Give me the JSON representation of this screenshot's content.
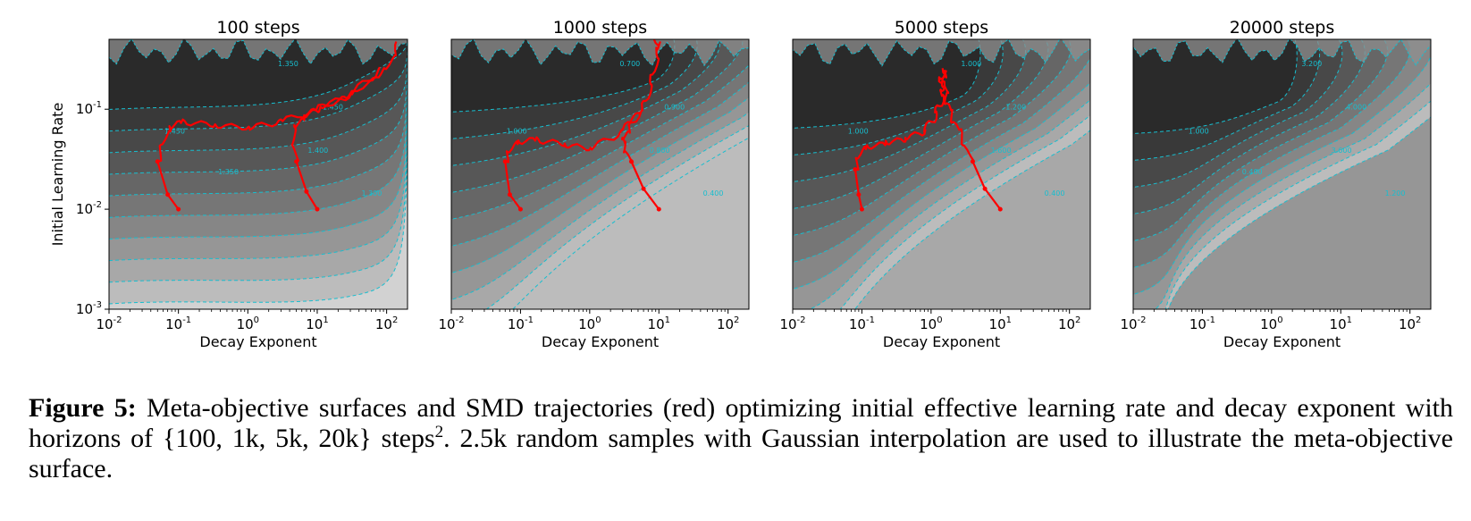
{
  "chart_data": [
    {
      "type": "contour",
      "title": "100 steps",
      "xlabel": "Decay Exponent",
      "ylabel": "Initial Learning Rate",
      "xscale": "log",
      "yscale": "log",
      "xlim": [
        0.01,
        200
      ],
      "ylim": [
        0.001,
        0.5
      ],
      "xticks": [
        "10",
        "10",
        "10",
        "10",
        "10"
      ],
      "xtick_exponents": [
        "-2",
        "-1",
        "0",
        "1",
        "2"
      ],
      "yticks": [
        "10",
        "10",
        "10"
      ],
      "ytick_exponents": [
        "-3",
        "-2",
        "-1"
      ],
      "contour_labels": [
        "1.450",
        "1.450",
        "1.400",
        "1.350",
        "1.300",
        "1.350"
      ],
      "trajectories": [
        {
          "x": [
            0.1,
            0.07,
            0.05,
            0.07,
            0.1,
            0.3,
            1,
            3,
            10,
            30,
            100,
            150
          ],
          "y": [
            0.01,
            0.014,
            0.03,
            0.06,
            0.075,
            0.07,
            0.065,
            0.075,
            0.1,
            0.14,
            0.25,
            0.45
          ]
        },
        {
          "x": [
            10,
            7,
            5,
            4.5,
            6,
            10,
            30,
            80
          ],
          "y": [
            0.01,
            0.015,
            0.03,
            0.06,
            0.08,
            0.1,
            0.14,
            0.25
          ]
        }
      ]
    },
    {
      "type": "contour",
      "title": "1000 steps",
      "xlabel": "Decay Exponent",
      "xscale": "log",
      "yscale": "log",
      "xlim": [
        0.01,
        200
      ],
      "ylim": [
        0.001,
        0.5
      ],
      "xticks": [
        "10",
        "10",
        "10",
        "10",
        "10"
      ],
      "xtick_exponents": [
        "-2",
        "-1",
        "0",
        "1",
        "2"
      ],
      "contour_labels": [
        "1.000",
        "0.900",
        "0.800",
        "0.700",
        "0.400"
      ],
      "trajectories": [
        {
          "x": [
            0.1,
            0.07,
            0.06,
            0.08,
            0.15,
            0.4,
            1,
            3,
            6,
            8,
            10,
            9
          ],
          "y": [
            0.01,
            0.014,
            0.03,
            0.045,
            0.05,
            0.045,
            0.04,
            0.06,
            0.1,
            0.2,
            0.4,
            0.5
          ]
        },
        {
          "x": [
            10,
            6,
            4,
            3,
            3.5,
            5
          ],
          "y": [
            0.01,
            0.016,
            0.03,
            0.045,
            0.06,
            0.1
          ]
        }
      ]
    },
    {
      "type": "contour",
      "title": "5000 steps",
      "xlabel": "Decay Exponent",
      "xscale": "log",
      "yscale": "log",
      "xlim": [
        0.01,
        200
      ],
      "ylim": [
        0.001,
        0.5
      ],
      "xticks": [
        "10",
        "10",
        "10",
        "10",
        "10"
      ],
      "xtick_exponents": [
        "-2",
        "-1",
        "0",
        "1",
        "2"
      ],
      "contour_labels": [
        "1.000",
        "1.200",
        "1.600",
        "1.000",
        "0.400"
      ],
      "trajectories": [
        {
          "x": [
            0.1,
            0.09,
            0.08,
            0.1,
            0.2,
            0.4,
            0.8,
            1.2,
            1.5,
            1.4,
            1.6
          ],
          "y": [
            0.01,
            0.014,
            0.025,
            0.04,
            0.045,
            0.05,
            0.06,
            0.09,
            0.14,
            0.2,
            0.25
          ]
        },
        {
          "x": [
            10,
            6,
            4,
            2.5,
            1.8,
            1.6,
            1.5
          ],
          "y": [
            0.01,
            0.016,
            0.03,
            0.06,
            0.1,
            0.16,
            0.24
          ]
        }
      ]
    },
    {
      "type": "contour",
      "title": "20000 steps",
      "xlabel": "Decay Exponent",
      "xscale": "log",
      "yscale": "log",
      "xlim": [
        0.01,
        200
      ],
      "ylim": [
        0.001,
        0.5
      ],
      "xticks": [
        "10",
        "10",
        "10",
        "10",
        "10"
      ],
      "xtick_exponents": [
        "-2",
        "-1",
        "0",
        "1",
        "2"
      ],
      "contour_labels": [
        "1.000",
        "4.000",
        "3.600",
        "3.200",
        "1.200",
        "0.400"
      ],
      "trajectories": []
    }
  ],
  "caption": {
    "label": "Figure 5:",
    "text_before_sup": " Meta-objective surfaces and SMD trajectories (red) optimizing initial effective learning rate and decay exponent with horizons of {100, 1k, 5k, 20k} steps",
    "sup": "2",
    "text_after_sup": ". 2.5k random samples with Gaussian interpolation are used to illustrate the meta-objective surface."
  },
  "colors": {
    "trajectory": "#ff0000",
    "contour_line": "#17becf",
    "surface_dark": "#1c1c1c",
    "surface_light": "#d8d8d8"
  }
}
